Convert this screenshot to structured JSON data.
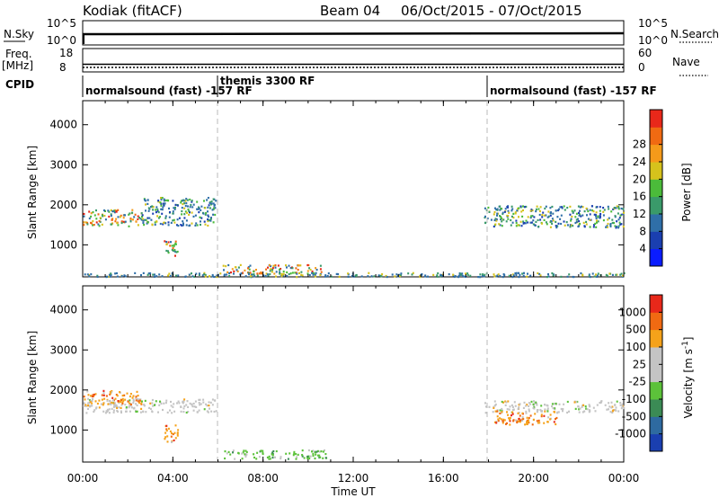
{
  "header": {
    "radar": "Kodiak (fitACF)",
    "beam": "Beam 04",
    "dates": "06/Oct/2015 - 07/Oct/2015"
  },
  "strips": {
    "nsky": {
      "label": "N.Sky",
      "scale_top": "10^5",
      "scale_bottom": "10^0",
      "right_label": "N.Search",
      "right_top": "10^5",
      "right_bottom": "10^0"
    },
    "freq": {
      "label_line1": "Freq.",
      "label_line2": "[MHz]",
      "scale_top": "18",
      "scale_bottom": "8",
      "right_label": "Nave",
      "right_top": "60",
      "right_bottom": "0"
    },
    "cpid": {
      "label": "CPID",
      "segments": [
        {
          "text": "normalsound (fast) -157 RF"
        },
        {
          "text": "themis 3300 RF"
        },
        {
          "text": "normalsound (fast) -157 RF"
        }
      ]
    }
  },
  "x_axis": {
    "label": "Time UT",
    "ticks": [
      "00:00",
      "04:00",
      "08:00",
      "12:00",
      "16:00",
      "20:00",
      "00:00"
    ]
  },
  "chart_data": [
    {
      "type": "heatmap",
      "panel": "power",
      "ylabel": "Slant Range [km]",
      "ylim": [
        200,
        4600
      ],
      "xlim_hours": [
        0,
        24
      ],
      "y_ticks": [
        "1000",
        "2000",
        "3000",
        "4000"
      ],
      "colorbar": {
        "label": "Power [dB]",
        "ticks": [
          "4",
          "8",
          "12",
          "16",
          "20",
          "24",
          "28"
        ],
        "colors": [
          "#0a1cff",
          "#1a3fb0",
          "#2f6fa8",
          "#3a9a6a",
          "#4bbb3a",
          "#d6c21c",
          "#f59a1a",
          "#f06a12",
          "#e8281a"
        ]
      },
      "regions": [
        {
          "t0": 0.0,
          "t1": 2.6,
          "r0": 1480,
          "r1": 1900,
          "level": "high"
        },
        {
          "t0": 2.6,
          "t1": 5.9,
          "r0": 1500,
          "r1": 2200,
          "level": "mid"
        },
        {
          "t0": 3.6,
          "t1": 4.2,
          "r0": 700,
          "r1": 1150,
          "level": "high"
        },
        {
          "t0": 6.2,
          "t1": 10.8,
          "r0": 300,
          "r1": 520,
          "level": "high"
        },
        {
          "t0": 17.8,
          "t1": 24.0,
          "r0": 1450,
          "r1": 2000,
          "level": "mid"
        },
        {
          "t0": 0.0,
          "t1": 24.0,
          "r0": 220,
          "r1": 320,
          "level": "sparse"
        }
      ]
    },
    {
      "type": "heatmap",
      "panel": "velocity",
      "ylabel": "Slant Range [km]",
      "ylim": [
        200,
        4600
      ],
      "xlim_hours": [
        0,
        24
      ],
      "y_ticks": [
        "1000",
        "2000",
        "3000",
        "4000"
      ],
      "colorbar": {
        "label": "Velocity [m s^-1]",
        "ticks": [
          "1000",
          "500",
          "100",
          "25",
          "-25",
          "-100",
          "-500",
          "-1000"
        ],
        "colors": [
          "#1a3fb0",
          "#2e6aa0",
          "#3b8b55",
          "#5cc23a",
          "#c4c4c4",
          "#c4c4c4",
          "#f5a21a",
          "#f06a12",
          "#e8281a"
        ]
      },
      "regions": [
        {
          "t0": 0.0,
          "t1": 5.9,
          "r0": 1450,
          "r1": 1800,
          "level": "gray"
        },
        {
          "t0": 0.0,
          "t1": 2.6,
          "r0": 1650,
          "r1": 2000,
          "level": "orange"
        },
        {
          "t0": 3.6,
          "t1": 4.2,
          "r0": 700,
          "r1": 1150,
          "level": "orange"
        },
        {
          "t0": 6.2,
          "t1": 10.8,
          "r0": 300,
          "r1": 520,
          "level": "green"
        },
        {
          "t0": 17.8,
          "t1": 24.0,
          "r0": 1450,
          "r1": 1750,
          "level": "gray"
        },
        {
          "t0": 18.2,
          "t1": 21.0,
          "r0": 1150,
          "r1": 1500,
          "level": "orange"
        }
      ]
    }
  ]
}
